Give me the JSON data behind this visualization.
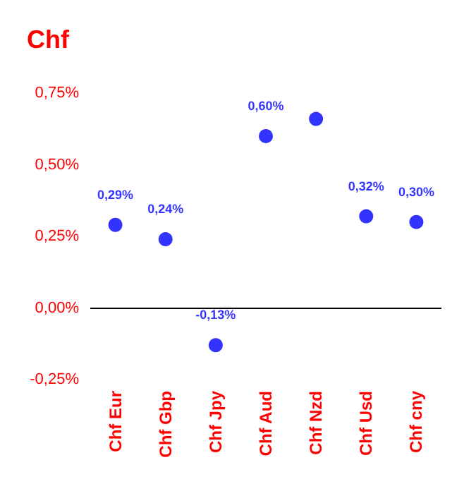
{
  "chart_data": {
    "type": "scatter",
    "title": "Chf",
    "categories": [
      "Chf Eur",
      "Chf Gbp",
      "Chf Jpy",
      "Chf Aud",
      "Chf Nzd",
      "Chf Usd",
      "Chf cny"
    ],
    "series": [
      {
        "color": "#0000ff",
        "values": [
          0.29,
          0.24,
          -0.13,
          0.6,
          0.66,
          0.32,
          0.3
        ],
        "value_labels": [
          "0,29%",
          "0,24%",
          "-0,13%",
          "0,60%",
          null,
          "0,32%",
          "0,30%"
        ]
      }
    ],
    "ylim": [
      -0.25,
      0.75
    ],
    "ref_lines": [
      {
        "axis": "y",
        "value": 0,
        "color": "#000000"
      }
    ],
    "yticks": [
      {
        "value": -0.25,
        "label": "-0,25%"
      },
      {
        "value": 0,
        "label": "0,00%"
      },
      {
        "value": 0.25,
        "label": "0,25%"
      },
      {
        "value": 0.5,
        "label": "0,50%"
      },
      {
        "value": 0.75,
        "label": "0,75%"
      }
    ],
    "marker": "circle"
  }
}
